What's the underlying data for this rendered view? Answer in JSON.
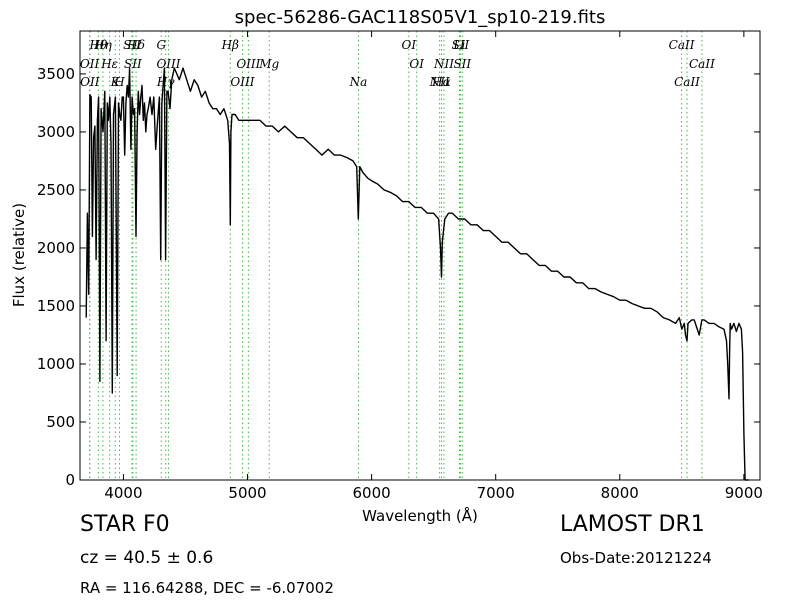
{
  "footer": {
    "class_label": "STAR   F0",
    "cz_label": "cz = 40.5  ± 0.6",
    "radec_label": "RA = 116.64288, DEC = -6.07002",
    "survey_label": "LAMOST DR1",
    "obsdate_label": "Obs-Date:20121224"
  },
  "chart_data": {
    "type": "line",
    "title": "spec-56286-GAC118S05V1_sp10-219.fits",
    "xlabel": "Wavelength (Å)",
    "ylabel": "Flux (relative)",
    "xlim": [
      3650,
      9130
    ],
    "ylim": [
      0,
      3870
    ],
    "xticks": [
      4000,
      5000,
      6000,
      7000,
      8000,
      9000
    ],
    "xtick_labels": [
      "4000",
      "5000",
      "6000",
      "7000",
      "8000",
      "9000"
    ],
    "yticks": [
      0,
      500,
      1000,
      1500,
      2000,
      2500,
      3000,
      3500
    ],
    "ytick_labels": [
      "0",
      "500",
      "1000",
      "1500",
      "2000",
      "2500",
      "3000",
      "3500"
    ],
    "grid": false,
    "colors": {
      "spectrum": "#000000",
      "line_markers": "#44bb44"
    },
    "spectrum": {
      "x": [
        3700,
        3710,
        3720,
        3730,
        3740,
        3750,
        3760,
        3770,
        3780,
        3790,
        3800,
        3810,
        3820,
        3835,
        3850,
        3860,
        3870,
        3880,
        3890,
        3900,
        3910,
        3920,
        3935,
        3950,
        3960,
        3970,
        3980,
        3990,
        4000,
        4010,
        4020,
        4030,
        4040,
        4050,
        4060,
        4070,
        4080,
        4090,
        4101,
        4110,
        4120,
        4130,
        4140,
        4150,
        4160,
        4170,
        4180,
        4190,
        4200,
        4215,
        4230,
        4245,
        4260,
        4275,
        4290,
        4300,
        4310,
        4320,
        4330,
        4340,
        4350,
        4360,
        4375,
        4390,
        4410,
        4430,
        4450,
        4480,
        4510,
        4540,
        4570,
        4600,
        4630,
        4660,
        4690,
        4720,
        4750,
        4780,
        4810,
        4840,
        4855,
        4861,
        4866,
        4875,
        4900,
        4930,
        4960,
        5000,
        5050,
        5100,
        5150,
        5200,
        5250,
        5300,
        5350,
        5400,
        5450,
        5500,
        5550,
        5600,
        5650,
        5700,
        5750,
        5800,
        5850,
        5880,
        5893,
        5905,
        5930,
        5970,
        6000,
        6050,
        6100,
        6150,
        6200,
        6250,
        6300,
        6350,
        6400,
        6450,
        6500,
        6540,
        6555,
        6563,
        6570,
        6590,
        6620,
        6650,
        6700,
        6750,
        6800,
        6850,
        6900,
        6950,
        7000,
        7050,
        7100,
        7150,
        7200,
        7250,
        7300,
        7350,
        7400,
        7450,
        7500,
        7550,
        7600,
        7650,
        7700,
        7750,
        7800,
        7850,
        7900,
        7950,
        8000,
        8050,
        8100,
        8150,
        8200,
        8250,
        8300,
        8350,
        8400,
        8450,
        8480,
        8500,
        8520,
        8530,
        8542,
        8550,
        8580,
        8600,
        8640,
        8662,
        8680,
        8720,
        8760,
        8800,
        8840,
        8860,
        8870,
        8880,
        8885,
        8890,
        8900,
        8920,
        8940,
        8960,
        8980,
        8990,
        9000,
        9010,
        9020,
        9030,
        9040
      ],
      "y": [
        1400,
        2300,
        1600,
        3320,
        3300,
        2100,
        2950,
        3050,
        1900,
        3100,
        3300,
        850,
        3200,
        3000,
        3350,
        1200,
        3250,
        3100,
        3300,
        2900,
        750,
        3150,
        3300,
        900,
        3250,
        3150,
        3100,
        3300,
        3300,
        2800,
        3250,
        3400,
        3300,
        3550,
        2850,
        3300,
        3150,
        3200,
        2100,
        3000,
        3350,
        3150,
        3300,
        3400,
        3100,
        3250,
        3000,
        3150,
        3200,
        3300,
        3150,
        3300,
        2850,
        3100,
        3300,
        1900,
        3250,
        3400,
        3550,
        1900,
        3350,
        3350,
        3200,
        3450,
        3550,
        3500,
        3450,
        3550,
        3450,
        3350,
        3450,
        3400,
        3300,
        3350,
        3250,
        3200,
        3200,
        3150,
        3200,
        3100,
        2900,
        2200,
        3000,
        3150,
        3150,
        3100,
        3100,
        3100,
        3100,
        3100,
        3050,
        3050,
        3000,
        3050,
        3000,
        2950,
        2950,
        2900,
        2850,
        2800,
        2850,
        2800,
        2800,
        2780,
        2750,
        2700,
        2250,
        2700,
        2650,
        2600,
        2580,
        2550,
        2500,
        2480,
        2450,
        2400,
        2400,
        2350,
        2350,
        2300,
        2300,
        2250,
        2000,
        1750,
        2050,
        2250,
        2300,
        2300,
        2250,
        2250,
        2200,
        2200,
        2150,
        2150,
        2100,
        2050,
        2050,
        2000,
        1950,
        1950,
        1900,
        1850,
        1850,
        1800,
        1800,
        1750,
        1750,
        1700,
        1700,
        1650,
        1650,
        1620,
        1600,
        1580,
        1550,
        1550,
        1520,
        1500,
        1480,
        1480,
        1450,
        1400,
        1380,
        1350,
        1400,
        1300,
        1350,
        1250,
        1200,
        1350,
        1380,
        1380,
        1250,
        1380,
        1380,
        1350,
        1350,
        1320,
        1300,
        1200,
        1000,
        700,
        1100,
        1350,
        1300,
        1350,
        1280,
        1350,
        1300,
        1100,
        400,
        0,
        0,
        0,
        0
      ]
    },
    "emission_lines": [
      {
        "label": "Hθ",
        "x": 3798
      },
      {
        "label": "OII",
        "x": 3727
      },
      {
        "label": "OII",
        "x": 3729
      },
      {
        "label": "Hη",
        "x": 3835
      },
      {
        "label": "Hε",
        "x": 3889
      },
      {
        "label": "K",
        "x": 3934
      },
      {
        "label": "SII",
        "x": 4069
      },
      {
        "label": "SII",
        "x": 4076
      },
      {
        "label": "H",
        "x": 3968
      },
      {
        "label": "Hδ",
        "x": 4102
      },
      {
        "label": "OIII",
        "x": 4363
      },
      {
        "label": "Hγ",
        "x": 4341
      },
      {
        "label": "G",
        "x": 4305
      },
      {
        "label": "OIII",
        "x": 5007
      },
      {
        "label": "OIII",
        "x": 4959
      },
      {
        "label": "Hβ",
        "x": 4861
      },
      {
        "label": "Mg",
        "x": 5175
      },
      {
        "label": "Na",
        "x": 5894
      },
      {
        "label": "OI",
        "x": 6300
      },
      {
        "label": "OI",
        "x": 6363
      },
      {
        "label": "Hα",
        "x": 6563
      },
      {
        "label": "SII",
        "x": 6716
      },
      {
        "label": "SII",
        "x": 6731
      },
      {
        "label": "NII",
        "x": 6548
      },
      {
        "label": "Li",
        "x": 6708
      },
      {
        "label": "NII",
        "x": 6583
      },
      {
        "label": "CaII",
        "x": 8542
      },
      {
        "label": "CaII",
        "x": 8498
      },
      {
        "label": "CaII",
        "x": 8662
      }
    ]
  }
}
